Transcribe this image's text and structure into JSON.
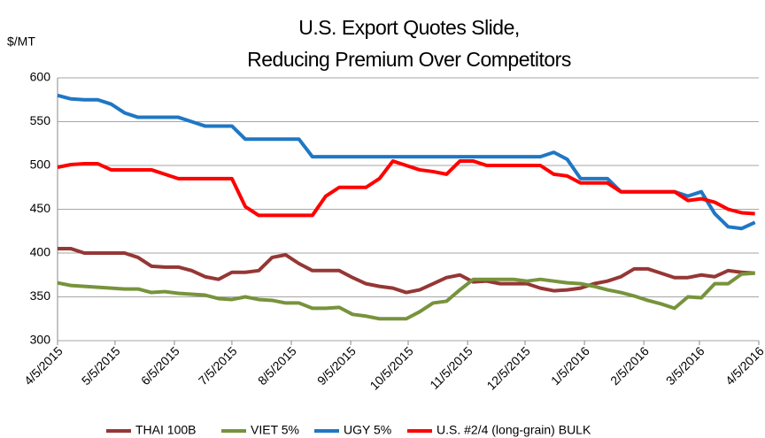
{
  "chart_data": {
    "type": "line",
    "title": "U.S. Export Quotes Slide,",
    "subtitle": "Reducing Premium Over Competitors",
    "y_label": "$/MT",
    "x": [
      "4/5/2015",
      "4/12/2015",
      "4/19/2015",
      "4/26/2015",
      "5/3/2015",
      "5/10/2015",
      "5/17/2015",
      "5/24/2015",
      "5/31/2015",
      "6/7/2015",
      "6/14/2015",
      "6/21/2015",
      "6/28/2015",
      "7/5/2015",
      "7/12/2015",
      "7/19/2015",
      "7/26/2015",
      "8/2/2015",
      "8/9/2015",
      "8/16/2015",
      "8/23/2015",
      "8/30/2015",
      "9/6/2015",
      "9/13/2015",
      "9/20/2015",
      "9/27/2015",
      "10/4/2015",
      "10/11/2015",
      "10/18/2015",
      "10/25/2015",
      "11/1/2015",
      "11/8/2015",
      "11/15/2015",
      "11/22/2015",
      "11/29/2015",
      "12/6/2015",
      "12/13/2015",
      "12/20/2015",
      "12/27/2015",
      "1/3/2016",
      "1/10/2016",
      "1/17/2016",
      "1/24/2016",
      "1/31/2016",
      "2/7/2016",
      "2/14/2016",
      "2/21/2016",
      "2/28/2016",
      "3/6/2016",
      "3/13/2016",
      "3/20/2016",
      "3/27/2016",
      "4/3/2016"
    ],
    "series": [
      {
        "name": "THAI 100B",
        "color": "#953735",
        "values": [
          405,
          405,
          400,
          400,
          400,
          400,
          395,
          385,
          384,
          384,
          380,
          373,
          370,
          378,
          378,
          380,
          395,
          398,
          388,
          380,
          380,
          380,
          372,
          365,
          362,
          360,
          355,
          358,
          365,
          372,
          375,
          367,
          368,
          365,
          365,
          365,
          360,
          357,
          358,
          360,
          365,
          368,
          373,
          382,
          382,
          377,
          372,
          372,
          375,
          373,
          380,
          378,
          377
        ]
      },
      {
        "name": "VIET 5%",
        "color": "#77933c",
        "values": [
          366,
          363,
          362,
          361,
          360,
          359,
          359,
          355,
          356,
          354,
          353,
          352,
          348,
          347,
          350,
          347,
          346,
          343,
          343,
          337,
          337,
          338,
          330,
          328,
          325,
          325,
          325,
          333,
          343,
          345,
          358,
          370,
          370,
          370,
          370,
          368,
          370,
          368,
          366,
          365,
          362,
          358,
          355,
          351,
          346,
          342,
          337,
          350,
          349,
          365,
          365,
          376,
          377
        ]
      },
      {
        "name": "UGY 5%",
        "color": "#1f77c4",
        "values": [
          580,
          576,
          575,
          575,
          570,
          560,
          555,
          555,
          555,
          555,
          550,
          545,
          545,
          545,
          530,
          530,
          530,
          530,
          530,
          510,
          510,
          510,
          510,
          510,
          510,
          510,
          510,
          510,
          510,
          510,
          510,
          510,
          510,
          510,
          510,
          510,
          510,
          515,
          507,
          485,
          485,
          485,
          470,
          470,
          470,
          470,
          470,
          465,
          470,
          445,
          430,
          428,
          435
        ]
      },
      {
        "name": "U.S. #2/4 (long-grain) BULK",
        "color": "#ff0000",
        "values": [
          498,
          501,
          502,
          502,
          495,
          495,
          495,
          495,
          490,
          485,
          485,
          485,
          485,
          485,
          453,
          443,
          443,
          443,
          443,
          443,
          465,
          475,
          475,
          475,
          485,
          505,
          500,
          495,
          493,
          490,
          505,
          505,
          500,
          500,
          500,
          500,
          500,
          490,
          488,
          480,
          480,
          480,
          470,
          470,
          470,
          470,
          470,
          460,
          462,
          458,
          450,
          446,
          445
        ]
      }
    ],
    "xlim": [
      "4/5/2015",
      "4/5/2016"
    ],
    "xticks": [
      "4/5/2015",
      "5/5/2015",
      "6/5/2015",
      "7/5/2015",
      "8/5/2015",
      "9/5/2015",
      "10/5/2015",
      "11/5/2015",
      "12/5/2015",
      "1/5/2016",
      "2/5/2016",
      "3/5/2016",
      "4/5/2016"
    ],
    "ylim": [
      300,
      600
    ],
    "yticks": [
      300,
      350,
      400,
      450,
      500,
      550,
      600
    ],
    "grid": true,
    "legend": "bottom"
  }
}
